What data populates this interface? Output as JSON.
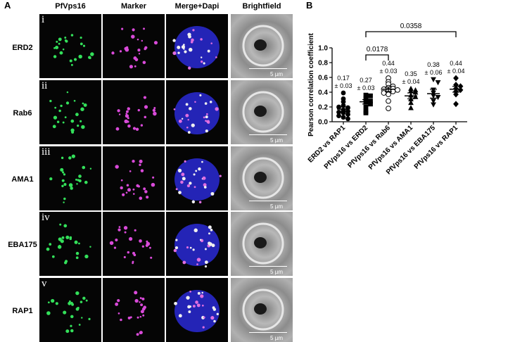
{
  "panel_a": {
    "letter": "A",
    "columns": [
      "PfVps16",
      "Marker",
      "Merge+Dapi",
      "Brightfield"
    ],
    "rows": [
      {
        "roman": "i",
        "label": "ERD2"
      },
      {
        "roman": "ii",
        "label": "Rab6"
      },
      {
        "roman": "iii",
        "label": "AMA1"
      },
      {
        "roman": "iv",
        "label": "EBA175"
      },
      {
        "roman": "v",
        "label": "RAP1"
      }
    ],
    "scale_label": "5 µm"
  },
  "panel_b": {
    "letter": "B",
    "bracket_top_p": "0.0358",
    "bracket_low_p": "0.0178"
  },
  "chart_data": {
    "type": "scatter",
    "ylabel": "Pearson correlation coefficient",
    "ylim": [
      0,
      1.0
    ],
    "yticks": [
      "0.0",
      "0.2",
      "0.4",
      "0.6",
      "0.8",
      "1.0"
    ],
    "categories": [
      "ERD2 vs RAP1",
      "PfVps16 vs ERD2",
      "PfVps16 vs Rab6",
      "PfVps16 vs AMA1",
      "PfVps16 vs EBA175",
      "PfVps16 vs RAP1"
    ],
    "means": [
      0.17,
      0.27,
      0.44,
      0.35,
      0.38,
      0.44
    ],
    "mean_labels": [
      "0.17",
      "0.27",
      "0.44",
      "0.35",
      "0.38",
      "0.44"
    ],
    "sem_labels": [
      "± 0.03",
      "± 0.03",
      "± 0.03",
      "± 0.04",
      "± 0.06",
      "± 0.04"
    ],
    "sem": [
      0.03,
      0.03,
      0.03,
      0.04,
      0.06,
      0.04
    ],
    "markers": [
      "filled-circle",
      "filled-square",
      "open-circle",
      "filled-triangle-up",
      "filled-triangle-down",
      "filled-diamond"
    ],
    "points": [
      [
        0.39,
        0.31,
        0.27,
        0.22,
        0.19,
        0.16,
        0.14,
        0.12,
        0.1,
        0.08,
        0.06,
        0.04,
        0.2,
        0.13
      ],
      [
        0.36,
        0.35,
        0.31,
        0.28,
        0.27,
        0.24,
        0.14,
        0.12,
        0.2
      ],
      [
        0.59,
        0.54,
        0.51,
        0.48,
        0.46,
        0.45,
        0.44,
        0.43,
        0.42,
        0.41,
        0.39,
        0.37,
        0.28,
        0.18
      ],
      [
        0.45,
        0.43,
        0.42,
        0.4,
        0.36,
        0.34,
        0.31,
        0.26,
        0.19
      ],
      [
        0.57,
        0.53,
        0.43,
        0.39,
        0.35,
        0.33,
        0.28,
        0.23
      ],
      [
        0.59,
        0.5,
        0.48,
        0.45,
        0.43,
        0.41,
        0.37,
        0.24
      ]
    ],
    "brackets": [
      {
        "from": 1,
        "to": 2,
        "label": "0.0178"
      },
      {
        "from": 1,
        "to": 5,
        "label": "0.0358"
      }
    ]
  }
}
